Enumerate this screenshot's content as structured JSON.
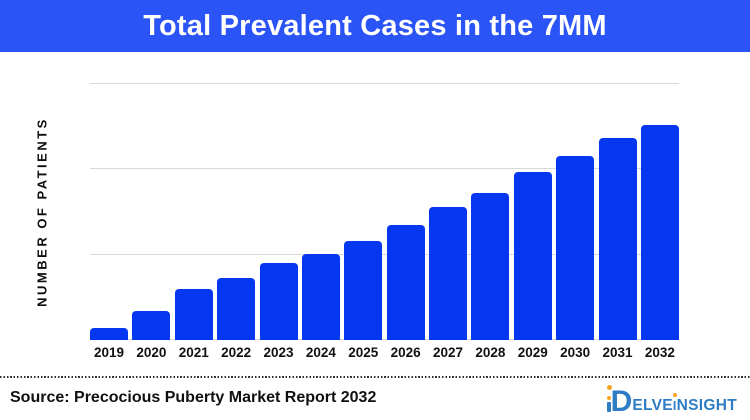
{
  "header": {
    "title": "Total Prevalent Cases in the 7MM",
    "background_color": "#2B54F6",
    "text_color": "#FFFFFF"
  },
  "chart_data": {
    "type": "bar",
    "title": "Total Prevalent Cases in the 7MM",
    "categories": [
      "2019",
      "2020",
      "2021",
      "2022",
      "2023",
      "2024",
      "2025",
      "2026",
      "2027",
      "2028",
      "2029",
      "2030",
      "2031",
      "2032"
    ],
    "values": [
      4.7,
      11.3,
      19.9,
      24.2,
      30.1,
      33.6,
      38.7,
      44.9,
      52.0,
      57.4,
      65.6,
      71.9,
      78.9,
      84.0
    ],
    "values_unit": "relative bar height, % of plot height (y-axis has no numeric tick labels)",
    "xlabel": "",
    "ylabel": "NUMBER OF PATIENTS",
    "ylim": [
      0,
      100
    ],
    "grid": "horizontal",
    "gridline_positions_pct": [
      0,
      33.33,
      66.67,
      100
    ],
    "legend_position": "none",
    "bar_color": "#0537F0",
    "gridline_color": "#D8D8D8"
  },
  "footer": {
    "source_text": "Source: Precocious Puberty Market Report 2032",
    "logo": {
      "full_text": "DELVEINSIGHT",
      "d_letter": "D",
      "text_part1": "ELVE",
      "i_letter": "I",
      "text_part2": "NSIGHT",
      "blue": "#2E7DC4",
      "orange": "#F5A21D"
    }
  }
}
